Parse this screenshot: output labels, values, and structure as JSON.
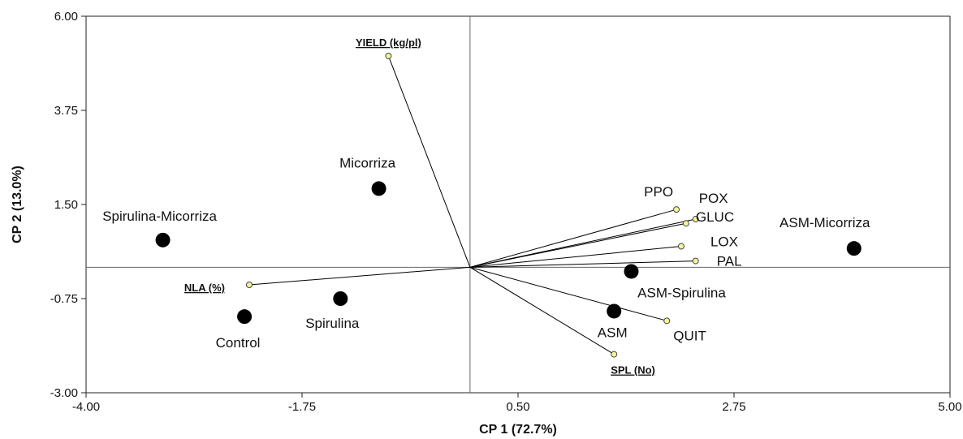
{
  "chart_data": {
    "type": "scatter",
    "subtype": "biplot",
    "title": "",
    "xlabel": "CP 1 (72.7%)",
    "ylabel": "CP 2 (13.0%)",
    "xlim": [
      -4.0,
      5.0
    ],
    "ylim": [
      -3.0,
      6.0
    ],
    "xticks": [
      "-4.00",
      "-1.75",
      "0.50",
      "2.75",
      "5.00"
    ],
    "yticks": [
      "-3.00",
      "-0.75",
      "1.50",
      "3.75",
      "6.00"
    ],
    "grid": false,
    "reference_lines": {
      "x": 0,
      "y": 0
    },
    "colors": {
      "point": "#000000",
      "vector": "#000000",
      "vector_tip": "#f3f59a"
    },
    "treatments": [
      {
        "label": "Spirulina-Micorriza",
        "x": -3.2,
        "y": 0.65
      },
      {
        "label": "Micorriza",
        "x": -0.95,
        "y": 1.88
      },
      {
        "label": "Spirulina",
        "x": -1.35,
        "y": -0.75
      },
      {
        "label": "Control",
        "x": -2.35,
        "y": -1.18
      },
      {
        "label": "ASM-Micorriza",
        "x": 4.0,
        "y": 0.45
      },
      {
        "label": "ASM-Spirulina",
        "x": 1.68,
        "y": -0.1
      },
      {
        "label": "ASM",
        "x": 1.5,
        "y": -1.05
      }
    ],
    "variables": [
      {
        "label": "YIELD (kg/pl)",
        "x": -0.85,
        "y": 5.05,
        "underlined": true
      },
      {
        "label": "PPO",
        "x": 2.15,
        "y": 1.38
      },
      {
        "label": "POX",
        "x": 2.35,
        "y": 1.15
      },
      {
        "label": "GLUC",
        "x": 2.25,
        "y": 1.05
      },
      {
        "label": "LOX",
        "x": 2.2,
        "y": 0.5
      },
      {
        "label": "PAL",
        "x": 2.35,
        "y": 0.15
      },
      {
        "label": "QUIT",
        "x": 2.05,
        "y": -1.28
      },
      {
        "label": "SPL (No)",
        "x": 1.5,
        "y": -2.08,
        "underlined": true
      },
      {
        "label": "NLA (%)",
        "x": -2.3,
        "y": -0.42,
        "underlined": true
      }
    ]
  }
}
